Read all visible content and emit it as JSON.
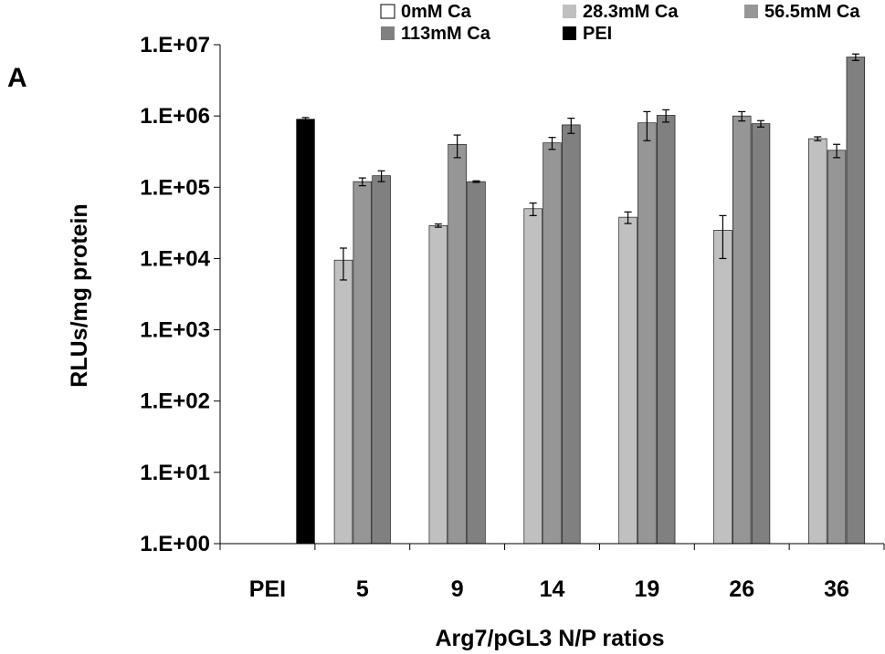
{
  "panel_label": "A",
  "chart_data": {
    "type": "bar",
    "title": "",
    "xlabel": "Arg7/pGL3 N/P ratios",
    "ylabel": "RLUs/mg protein",
    "yscale": "log",
    "ylim": [
      1,
      10000000
    ],
    "ytick_labels": [
      "1.E+00",
      "1.E+01",
      "1.E+02",
      "1.E+03",
      "1.E+04",
      "1.E+05",
      "1.E+06",
      "1.E+07"
    ],
    "categories": [
      "PEI",
      "5",
      "9",
      "14",
      "19",
      "26",
      "36"
    ],
    "legend_position": "top",
    "series": [
      {
        "name": "0mM Ca",
        "color": "#ffffff",
        "values": [
          1,
          1,
          1,
          1,
          1,
          1,
          1
        ],
        "errors": [
          0,
          0,
          0,
          0,
          0,
          0,
          0
        ]
      },
      {
        "name": "28.3mM Ca",
        "color": "#c0c0c0",
        "values": [
          1,
          9500,
          29000,
          50000,
          38000,
          25000,
          480000
        ],
        "errors": [
          0,
          4500,
          1500,
          10000,
          7000,
          15000,
          30000
        ]
      },
      {
        "name": "56.5mM Ca",
        "color": "#969696",
        "values": [
          1,
          120000,
          400000,
          420000,
          800000,
          1000000,
          330000
        ],
        "errors": [
          0,
          15000,
          140000,
          80000,
          350000,
          150000,
          70000
        ]
      },
      {
        "name": "113mM Ca",
        "color": "#808080",
        "values": [
          1,
          145000,
          120000,
          750000,
          1020000,
          780000,
          6700000
        ],
        "errors": [
          0,
          25000,
          3000,
          180000,
          200000,
          80000,
          700000
        ]
      },
      {
        "name": "PEI",
        "color": "#000000",
        "values": [
          900000,
          1,
          1,
          1,
          1,
          1,
          1
        ],
        "errors": [
          50000,
          0,
          0,
          0,
          0,
          0,
          0
        ]
      }
    ]
  }
}
